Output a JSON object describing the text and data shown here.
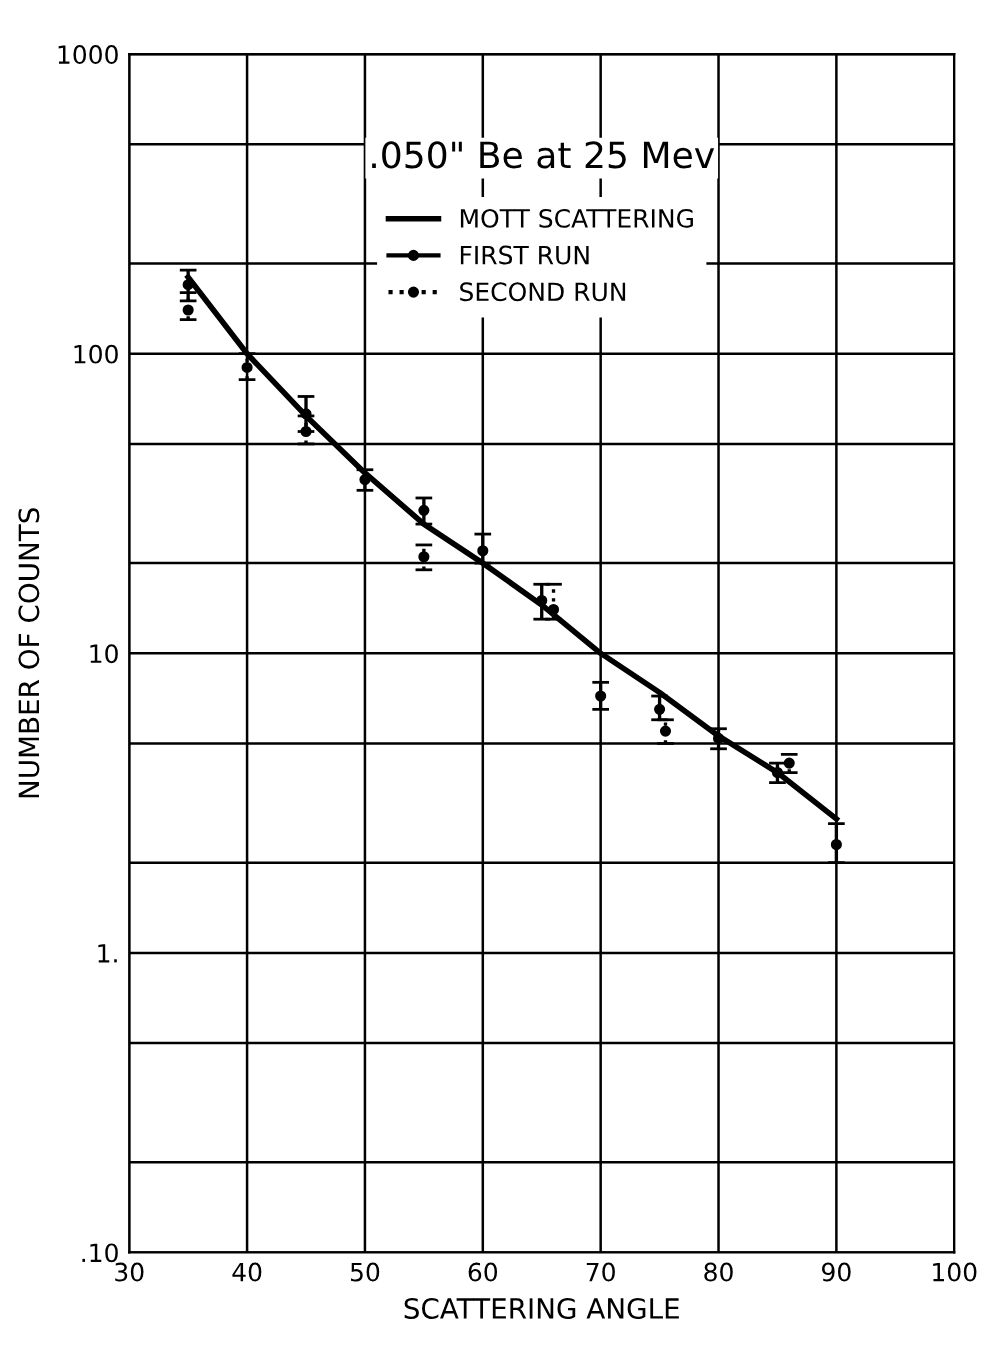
{
  "chart_data": {
    "type": "scatter",
    "title": ".050\" Be at 25 Mev",
    "xlabel": "SCATTERING ANGLE",
    "ylabel": "NUMBER OF COUNTS",
    "log": "y",
    "grid": true,
    "legend": "top",
    "xlim": [
      30,
      100
    ],
    "xticks": [
      30,
      40,
      50,
      60,
      70,
      80,
      90,
      100
    ],
    "ylim": [
      0.1,
      1000
    ],
    "yticks": [
      {
        "value": 0.1,
        "label": ".10"
      },
      {
        "value": 0.2,
        "label": null
      },
      {
        "value": 0.5,
        "label": null
      },
      {
        "value": 1,
        "label": "1."
      },
      {
        "value": 2,
        "label": null
      },
      {
        "value": 5,
        "label": null
      },
      10,
      {
        "value": 20,
        "label": null
      },
      {
        "value": 50,
        "label": null
      },
      100,
      {
        "value": 200,
        "label": null
      },
      {
        "value": 500,
        "label": null
      },
      1000
    ],
    "series": [
      {
        "name": "MOTT SCATTERING",
        "type": "line",
        "marker": "none",
        "color": "#000000",
        "line_style": "solid",
        "x": [
          35,
          40,
          45,
          50,
          55,
          60,
          65,
          70,
          75,
          80,
          85,
          90
        ],
        "values": [
          180,
          100,
          62,
          40,
          27,
          20,
          14.5,
          10,
          7.4,
          5.3,
          4.0,
          2.8
        ]
      },
      {
        "name": "FIRST RUN",
        "marker": "circle",
        "color": "#000000",
        "line_style": "solid",
        "x": [
          35,
          45,
          50,
          55,
          60,
          65,
          70,
          75,
          80,
          85,
          90
        ],
        "values": [
          170,
          63,
          38,
          30,
          22,
          15,
          7.2,
          6.5,
          5.2,
          4.0,
          2.3
        ],
        "errors": [
          [
            150,
            190
          ],
          [
            55,
            72
          ],
          [
            35,
            41
          ],
          [
            27,
            33
          ],
          [
            20,
            25
          ],
          [
            13,
            17
          ],
          [
            6.5,
            8
          ],
          [
            6,
            7.2
          ],
          [
            4.8,
            5.6
          ],
          [
            3.7,
            4.3
          ],
          [
            2.0,
            2.7
          ]
        ]
      },
      {
        "name": "SECOND RUN",
        "marker": "circle",
        "color": "#000000",
        "line_style": "dotted",
        "x": [
          35,
          40,
          45,
          55,
          66,
          75.5,
          86
        ],
        "values": [
          140,
          90,
          55,
          21,
          14,
          5.5,
          4.3
        ],
        "errors": [
          [
            130,
            160
          ],
          [
            82,
            100
          ],
          [
            50,
            62
          ],
          [
            19,
            23
          ],
          [
            13,
            17
          ],
          [
            5,
            6
          ],
          [
            4.0,
            4.6
          ]
        ]
      }
    ]
  }
}
